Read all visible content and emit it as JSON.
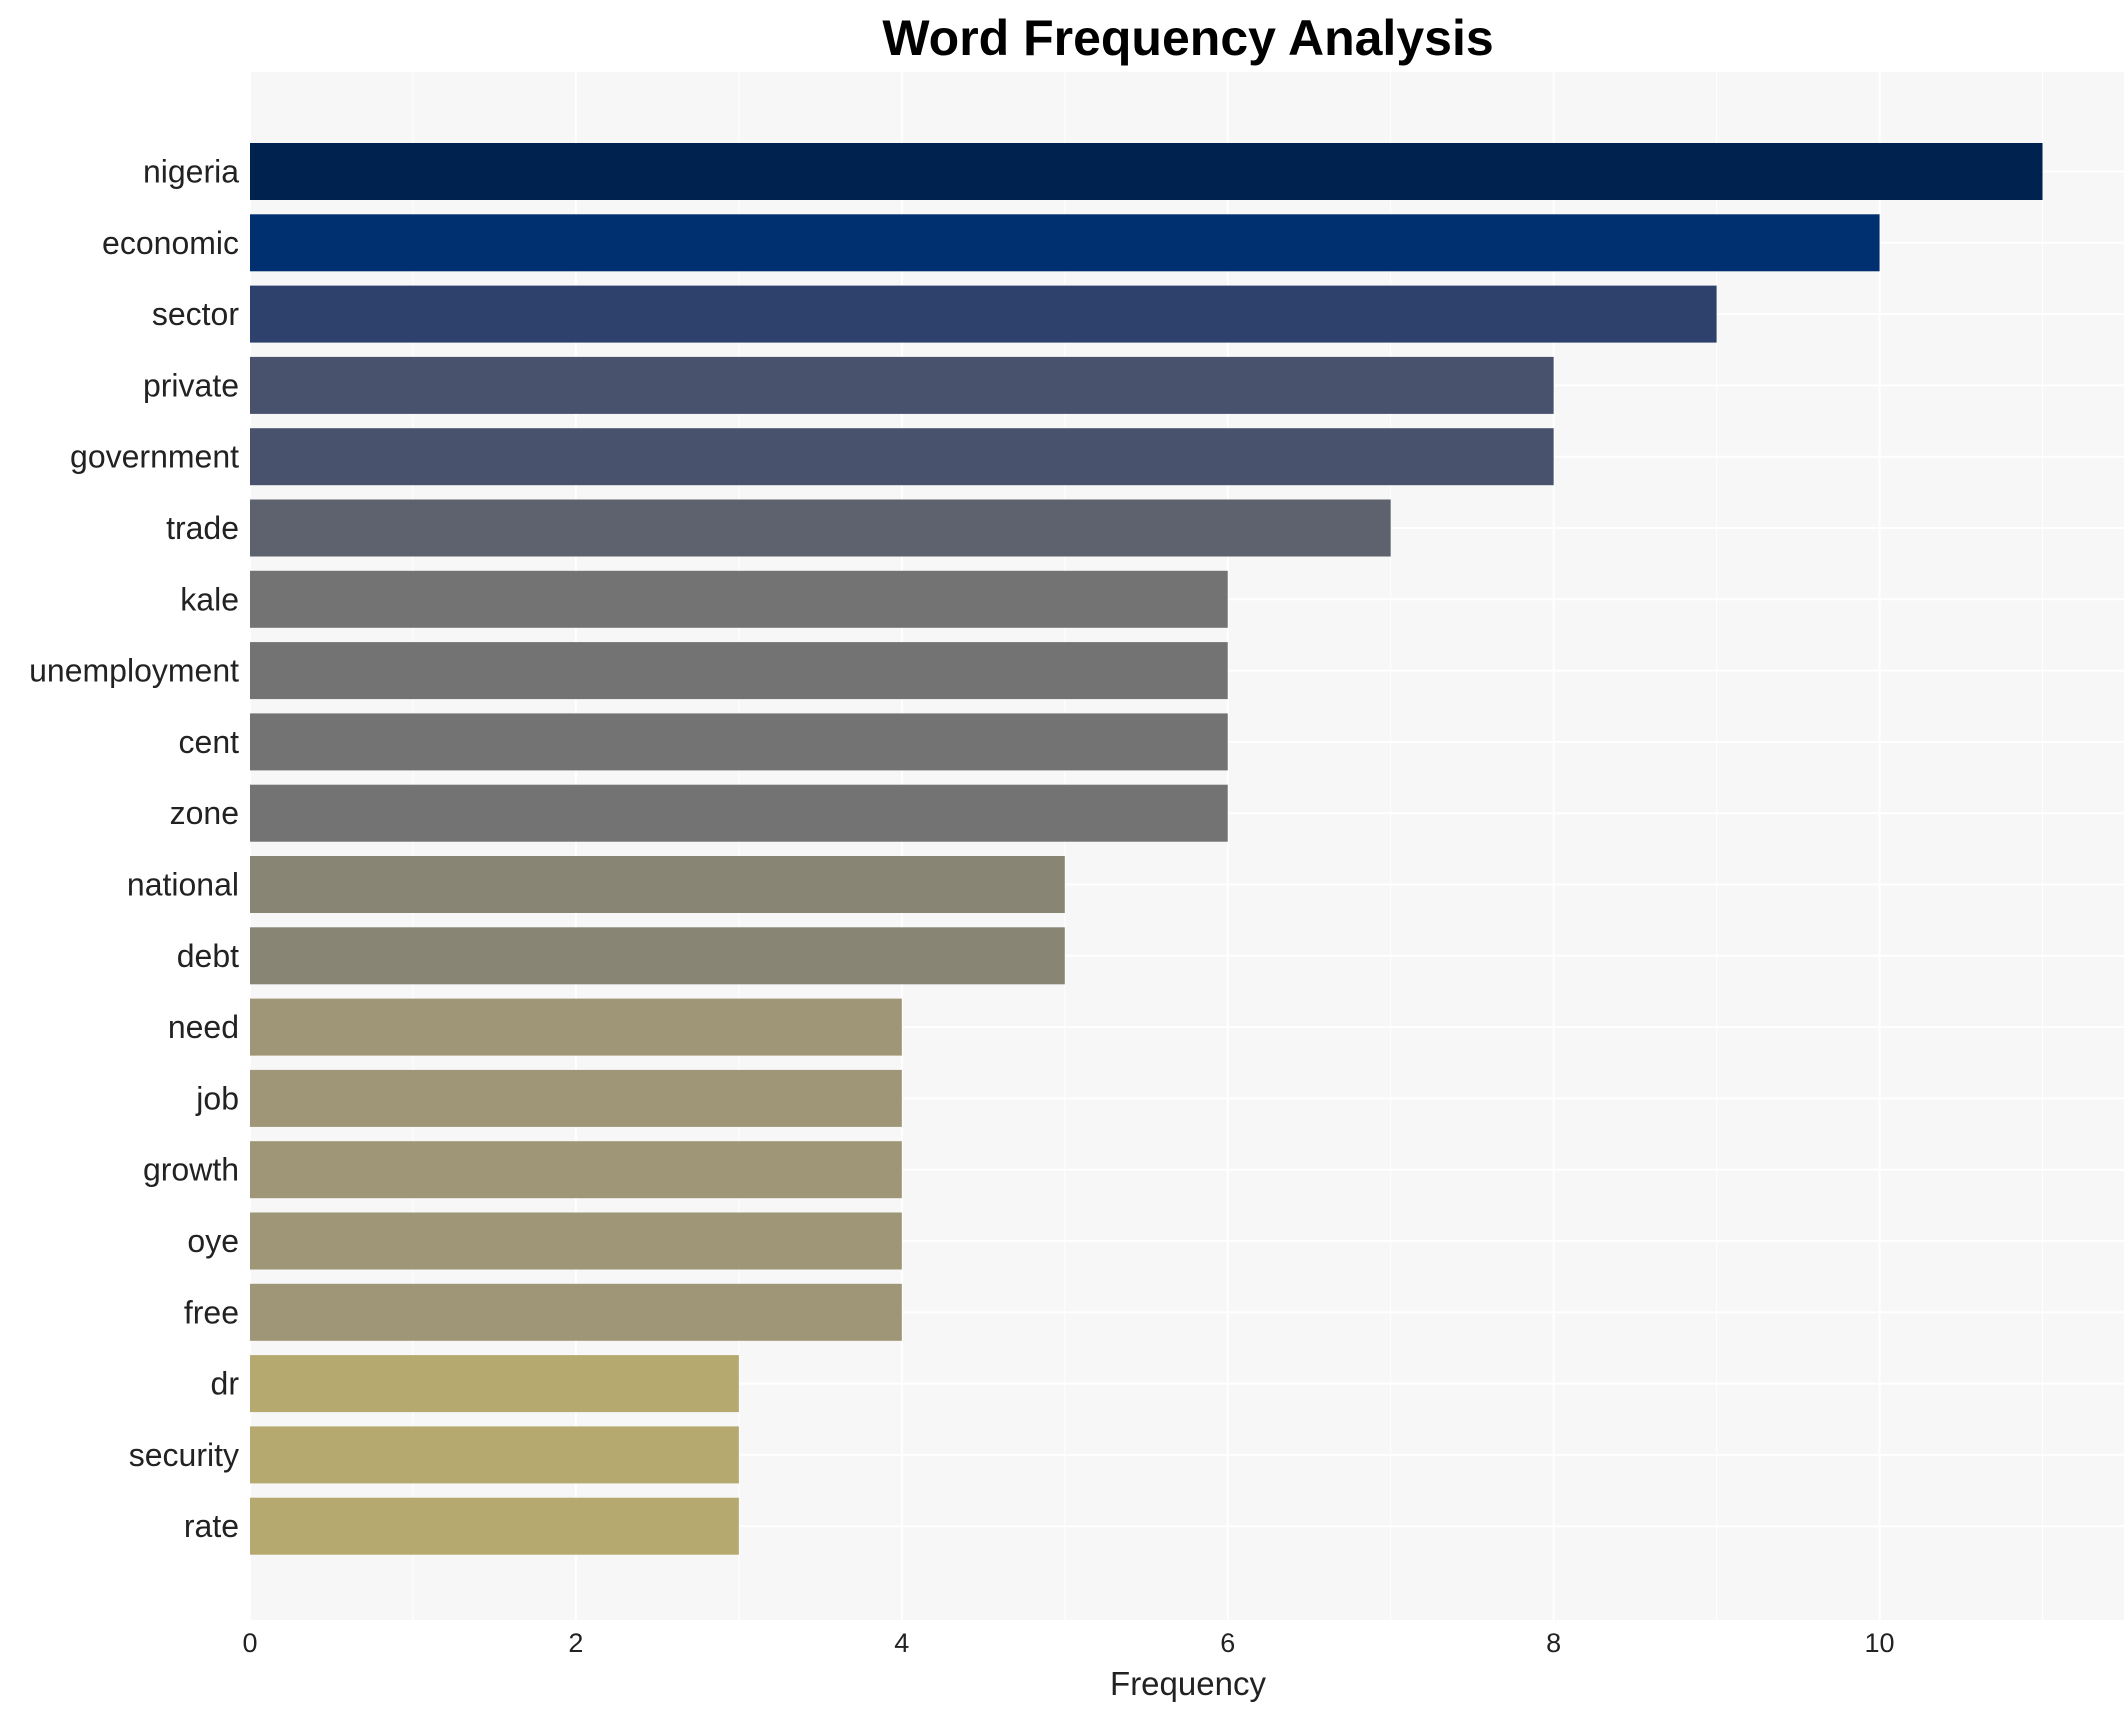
{
  "chart_data": {
    "type": "bar",
    "orientation": "horizontal",
    "title": "Word Frequency Analysis",
    "xlabel": "Frequency",
    "ylabel": "",
    "xlim": [
      0,
      11.5
    ],
    "xticks": [
      0,
      2,
      4,
      6,
      8,
      10
    ],
    "grid": true,
    "legend": "none",
    "categories": [
      "nigeria",
      "economic",
      "sector",
      "private",
      "government",
      "trade",
      "kale",
      "unemployment",
      "cent",
      "zone",
      "national",
      "debt",
      "need",
      "job",
      "growth",
      "oye",
      "free",
      "dr",
      "security",
      "rate"
    ],
    "values": [
      11,
      10,
      9,
      8,
      8,
      7,
      6,
      6,
      6,
      6,
      5,
      5,
      4,
      4,
      4,
      4,
      4,
      3,
      3,
      3
    ],
    "colors": [
      "#00224e",
      "#00306f",
      "#2e416d",
      "#49526d",
      "#49526d",
      "#5d626e",
      "#737373",
      "#737373",
      "#737373",
      "#737373",
      "#888575",
      "#888575",
      "#9e9676",
      "#9e9676",
      "#9e9676",
      "#9e9676",
      "#9e9676",
      "#b5a970",
      "#b5a970",
      "#b5a970"
    ],
    "background": "#f7f7f7"
  }
}
